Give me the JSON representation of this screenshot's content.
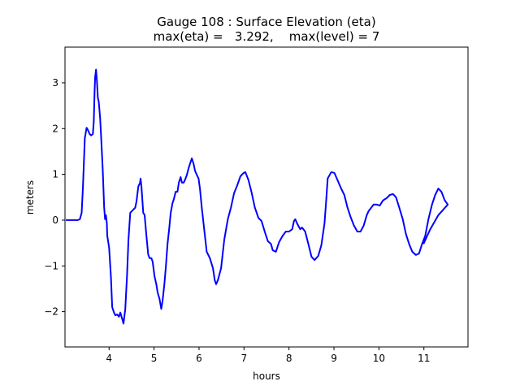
{
  "chart_data": {
    "type": "line",
    "title": "Gauge 108 : Surface Elevation (eta)",
    "subtitle": "max(eta) =   3.292,    max(level) = 7",
    "xlabel": "hours",
    "ylabel": "meters",
    "xlim": [
      3.02,
      11.98
    ],
    "ylim": [
      -2.77,
      3.78
    ],
    "xticks": [
      4,
      5,
      6,
      7,
      8,
      9,
      10,
      11
    ],
    "yticks": [
      -2,
      -1,
      0,
      1,
      2,
      3
    ],
    "grid": false,
    "series": [
      {
        "name": "eta",
        "color": "#0000ff",
        "x": [
          3.04,
          3.3,
          3.35,
          3.39,
          3.42,
          3.46,
          3.5,
          3.53,
          3.57,
          3.6,
          3.64,
          3.66,
          3.68,
          3.69,
          3.71,
          3.73,
          3.75,
          3.77,
          3.8,
          3.82,
          3.86,
          3.89,
          3.91,
          3.93,
          3.95,
          3.96,
          4.0,
          4.04,
          4.07,
          4.11,
          4.14,
          4.18,
          4.22,
          4.25,
          4.29,
          4.32,
          4.36,
          4.4,
          4.43,
          4.47,
          4.51,
          4.54,
          4.58,
          4.61,
          4.65,
          4.69,
          4.7,
          4.72,
          4.76,
          4.79,
          4.83,
          4.87,
          4.9,
          4.94,
          4.97,
          5.01,
          5.05,
          5.08,
          5.12,
          5.16,
          5.19,
          5.23,
          5.26,
          5.3,
          5.34,
          5.37,
          5.41,
          5.44,
          5.48,
          5.52,
          5.55,
          5.59,
          5.62,
          5.66,
          5.7,
          5.73,
          5.77,
          5.81,
          5.84,
          5.88,
          5.91,
          5.95,
          5.99,
          6.02,
          6.06,
          6.13,
          6.17,
          6.24,
          6.31,
          6.35,
          6.38,
          6.42,
          6.49,
          6.56,
          6.64,
          6.71,
          6.78,
          6.85,
          6.92,
          6.96,
          6.99,
          7.03,
          7.1,
          7.17,
          7.24,
          7.32,
          7.39,
          7.46,
          7.53,
          7.6,
          7.64,
          7.71,
          7.78,
          7.86,
          7.93,
          8.0,
          8.07,
          8.11,
          8.14,
          8.18,
          8.25,
          8.29,
          8.36,
          8.43,
          8.5,
          8.57,
          8.65,
          8.72,
          8.79,
          8.83,
          8.86,
          8.94,
          9.01,
          9.08,
          9.16,
          9.23,
          9.3,
          9.37,
          9.44,
          9.52,
          9.59,
          9.66,
          9.73,
          9.77,
          9.81,
          9.88,
          9.95,
          10.02,
          10.09,
          10.17,
          10.24,
          10.31,
          10.38,
          10.45,
          10.53,
          10.6,
          10.67,
          10.74,
          10.82,
          10.89,
          10.96,
          11.03,
          11.1,
          11.18,
          11.25,
          11.32,
          11.39,
          11.46,
          11.53,
          11.32,
          11.14,
          10.99
        ],
        "y": [
          0.0,
          0.0,
          0.02,
          0.16,
          0.73,
          1.79,
          2.02,
          1.97,
          1.88,
          1.85,
          1.88,
          2.15,
          2.86,
          3.13,
          3.29,
          3.04,
          2.68,
          2.59,
          2.24,
          1.88,
          1.08,
          0.28,
          0.02,
          0.11,
          -0.07,
          -0.34,
          -0.6,
          -1.23,
          -1.9,
          -2.02,
          -2.08,
          -2.06,
          -2.11,
          -2.02,
          -2.15,
          -2.26,
          -1.94,
          -1.19,
          -0.43,
          0.16,
          0.2,
          0.23,
          0.27,
          0.41,
          0.73,
          0.82,
          0.91,
          0.73,
          0.16,
          0.11,
          -0.34,
          -0.75,
          -0.83,
          -0.83,
          -0.91,
          -1.23,
          -1.4,
          -1.58,
          -1.72,
          -1.94,
          -1.76,
          -1.4,
          -1.05,
          -0.52,
          -0.16,
          0.16,
          0.37,
          0.46,
          0.62,
          0.62,
          0.82,
          0.94,
          0.82,
          0.82,
          0.91,
          0.99,
          1.14,
          1.26,
          1.35,
          1.23,
          1.08,
          0.99,
          0.91,
          0.69,
          0.28,
          -0.34,
          -0.69,
          -0.83,
          -1.05,
          -1.31,
          -1.4,
          -1.31,
          -1.05,
          -0.43,
          0.02,
          0.28,
          0.59,
          0.76,
          0.96,
          1.0,
          1.03,
          1.05,
          0.87,
          0.6,
          0.28,
          0.05,
          -0.02,
          -0.25,
          -0.46,
          -0.52,
          -0.66,
          -0.69,
          -0.48,
          -0.34,
          -0.25,
          -0.25,
          -0.2,
          -0.02,
          0.02,
          -0.07,
          -0.2,
          -0.16,
          -0.25,
          -0.52,
          -0.8,
          -0.87,
          -0.78,
          -0.55,
          -0.07,
          0.46,
          0.91,
          1.05,
          1.03,
          0.87,
          0.69,
          0.55,
          0.28,
          0.07,
          -0.11,
          -0.25,
          -0.25,
          -0.12,
          0.11,
          0.2,
          0.25,
          0.34,
          0.34,
          0.32,
          0.43,
          0.48,
          0.55,
          0.57,
          0.5,
          0.28,
          0.02,
          -0.3,
          -0.52,
          -0.69,
          -0.76,
          -0.73,
          -0.52,
          -0.34,
          0.02,
          0.34,
          0.55,
          0.69,
          0.62,
          0.44,
          0.34,
          0.11,
          -0.2,
          -0.52
        ]
      }
    ]
  }
}
